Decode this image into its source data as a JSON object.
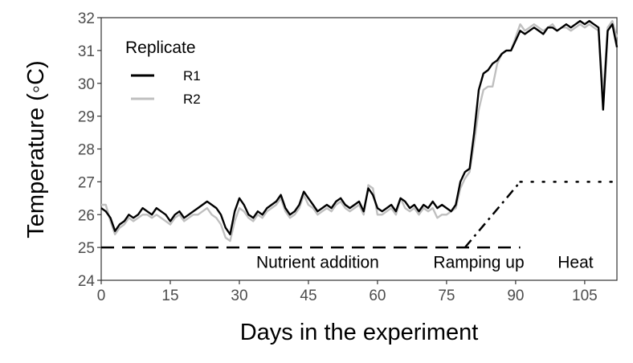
{
  "chart_data": {
    "type": "line",
    "title": "",
    "xlabel": "Days in the experiment",
    "ylabel": "Temperature  (◦C)",
    "xlim": [
      0,
      112
    ],
    "ylim": [
      24,
      32
    ],
    "xticks": [
      0,
      15,
      30,
      45,
      60,
      75,
      90,
      105
    ],
    "yticks": [
      24,
      25,
      26,
      27,
      28,
      29,
      30,
      31,
      32
    ],
    "grid": false,
    "legend": {
      "title": "Replicate",
      "position": "top-left"
    },
    "colors": {
      "R1": "#000000",
      "R2": "#bfbfbf"
    },
    "series": [
      {
        "name": "R1",
        "x": [
          0,
          1,
          2,
          3,
          4,
          5,
          6,
          7,
          8,
          9,
          10,
          11,
          12,
          13,
          14,
          15,
          16,
          17,
          18,
          19,
          20,
          21,
          22,
          23,
          24,
          25,
          26,
          27,
          28,
          29,
          30,
          31,
          32,
          33,
          34,
          35,
          36,
          37,
          38,
          39,
          40,
          41,
          42,
          43,
          44,
          45,
          46,
          47,
          48,
          49,
          50,
          51,
          52,
          53,
          54,
          55,
          56,
          57,
          58,
          59,
          60,
          61,
          62,
          63,
          64,
          65,
          66,
          67,
          68,
          69,
          70,
          71,
          72,
          73,
          74,
          75,
          76,
          77,
          78,
          79,
          80,
          81,
          82,
          83,
          84,
          85,
          86,
          87,
          88,
          89,
          90,
          91,
          92,
          93,
          94,
          95,
          96,
          97,
          98,
          99,
          100,
          101,
          102,
          103,
          104,
          105,
          106,
          107,
          108,
          109,
          110,
          111,
          112
        ],
        "y": [
          26.2,
          26.1,
          25.9,
          25.5,
          25.7,
          25.8,
          26.0,
          25.9,
          26.0,
          26.2,
          26.1,
          26.0,
          26.2,
          26.1,
          26.0,
          25.8,
          26.0,
          26.1,
          25.9,
          26.0,
          26.1,
          26.2,
          26.3,
          26.4,
          26.3,
          26.2,
          26.0,
          25.6,
          25.4,
          26.1,
          26.5,
          26.3,
          26.0,
          25.9,
          26.1,
          26.0,
          26.2,
          26.3,
          26.4,
          26.6,
          26.2,
          26.0,
          26.1,
          26.3,
          26.7,
          26.5,
          26.3,
          26.1,
          26.2,
          26.3,
          26.2,
          26.4,
          26.5,
          26.3,
          26.2,
          26.3,
          26.4,
          26.1,
          26.8,
          26.6,
          26.2,
          26.1,
          26.2,
          26.3,
          26.1,
          26.5,
          26.4,
          26.2,
          26.3,
          26.1,
          26.3,
          26.2,
          26.4,
          26.2,
          26.3,
          26.2,
          26.1,
          26.3,
          27.0,
          27.3,
          27.4,
          28.5,
          29.8,
          30.3,
          30.4,
          30.6,
          30.7,
          30.9,
          31.0,
          31.0,
          31.3,
          31.6,
          31.5,
          31.6,
          31.7,
          31.6,
          31.5,
          31.7,
          31.7,
          31.6,
          31.7,
          31.8,
          31.7,
          31.8,
          31.9,
          31.8,
          31.9,
          31.8,
          31.7,
          29.2,
          31.6,
          31.8,
          31.1
        ]
      },
      {
        "name": "R2",
        "x": [
          0,
          1,
          2,
          3,
          4,
          5,
          6,
          7,
          8,
          9,
          10,
          11,
          12,
          13,
          14,
          15,
          16,
          17,
          18,
          19,
          20,
          21,
          22,
          23,
          24,
          25,
          26,
          27,
          28,
          29,
          30,
          31,
          32,
          33,
          34,
          35,
          36,
          37,
          38,
          39,
          40,
          41,
          42,
          43,
          44,
          45,
          46,
          47,
          48,
          49,
          50,
          51,
          52,
          53,
          54,
          55,
          56,
          57,
          58,
          59,
          60,
          61,
          62,
          63,
          64,
          65,
          66,
          67,
          68,
          69,
          70,
          71,
          72,
          73,
          74,
          75,
          76,
          77,
          78,
          79,
          80,
          81,
          82,
          83,
          84,
          85,
          86,
          87,
          88,
          89,
          90,
          91,
          92,
          93,
          94,
          95,
          96,
          97,
          98,
          99,
          100,
          101,
          102,
          103,
          104,
          105,
          106,
          107,
          108,
          109,
          110,
          111,
          112
        ],
        "y": [
          26.3,
          26.3,
          25.8,
          25.4,
          25.6,
          25.7,
          25.9,
          25.8,
          25.9,
          26.0,
          26.0,
          25.9,
          26.0,
          25.9,
          25.8,
          25.7,
          25.9,
          26.0,
          25.8,
          25.9,
          26.0,
          26.0,
          26.1,
          26.2,
          26.0,
          25.9,
          25.7,
          25.3,
          25.2,
          25.8,
          26.2,
          26.1,
          25.9,
          25.8,
          26.0,
          25.9,
          26.1,
          26.2,
          26.3,
          26.5,
          26.1,
          25.9,
          26.0,
          26.2,
          26.6,
          26.3,
          26.2,
          26.0,
          26.1,
          26.2,
          26.1,
          26.3,
          26.4,
          26.2,
          26.1,
          26.2,
          26.3,
          26.0,
          26.9,
          26.8,
          26.0,
          26.0,
          26.1,
          26.2,
          26.0,
          26.5,
          26.2,
          26.1,
          26.2,
          26.0,
          26.2,
          26.1,
          26.2,
          25.9,
          26.0,
          26.0,
          26.1,
          26.2,
          26.8,
          27.1,
          27.3,
          28.2,
          29.2,
          29.8,
          29.9,
          29.9,
          30.6,
          30.9,
          31.0,
          31.0,
          31.4,
          31.8,
          31.6,
          31.7,
          31.8,
          31.7,
          31.6,
          31.7,
          31.8,
          31.6,
          31.7,
          31.7,
          31.6,
          31.7,
          31.8,
          31.7,
          31.8,
          31.7,
          31.6,
          29.7,
          31.7,
          31.9,
          31.4
        ]
      }
    ],
    "reference_lines": [
      {
        "style": "dashed",
        "x": [
          0,
          91
        ],
        "y": [
          25,
          25
        ]
      },
      {
        "style": "dashdot",
        "x": [
          79,
          91
        ],
        "y": [
          25,
          27
        ]
      },
      {
        "style": "dotted",
        "x": [
          91,
          111
        ],
        "y": [
          27,
          27
        ]
      }
    ],
    "annotations": [
      {
        "text": "Nutrient addition",
        "x": 47,
        "y": 24.55
      },
      {
        "text": "Ramping up",
        "x": 82,
        "y": 24.55
      },
      {
        "text": "Heat",
        "x": 103,
        "y": 24.55
      }
    ]
  }
}
